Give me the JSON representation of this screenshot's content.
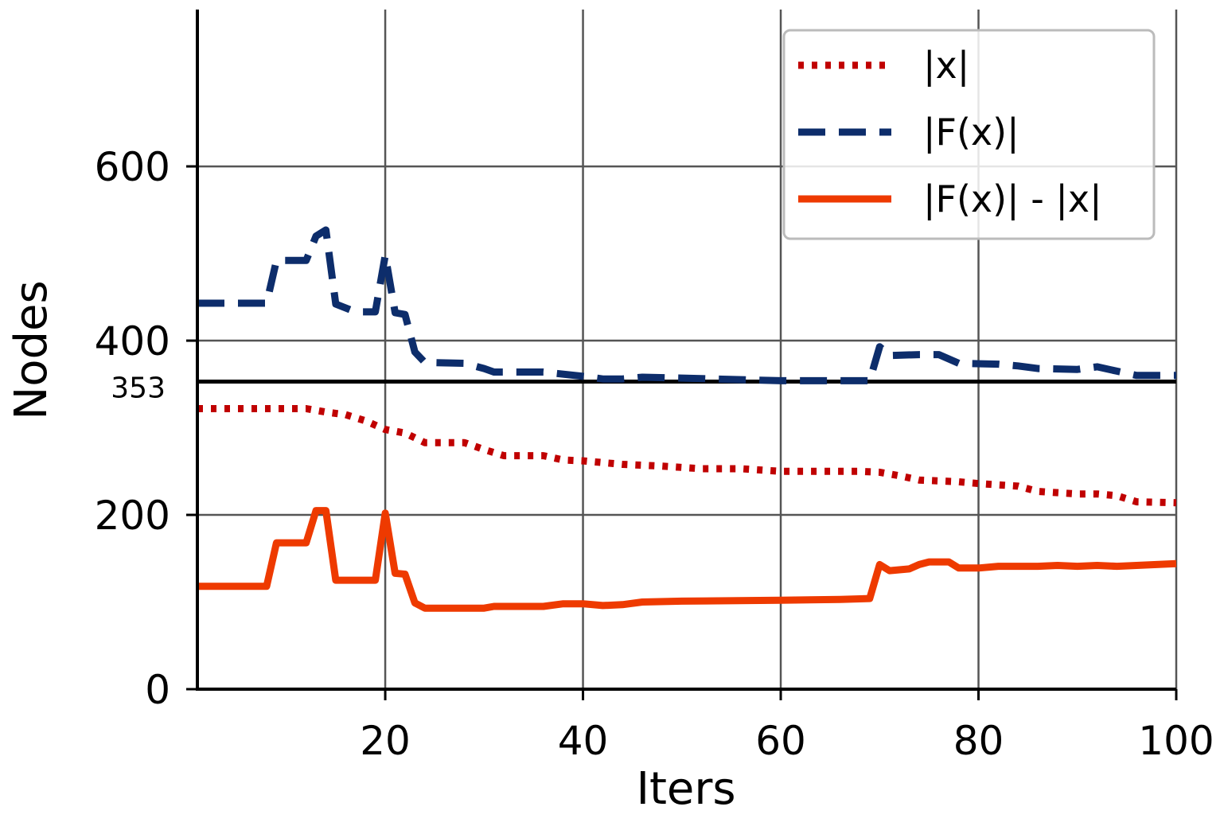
{
  "chart_data": {
    "type": "line",
    "xlabel": "Iters",
    "ylabel": "Nodes",
    "xlim": [
      1,
      100
    ],
    "ylim": [
      0,
      780
    ],
    "xticks": [
      20,
      40,
      60,
      80,
      100
    ],
    "yticks": [
      0,
      200,
      400,
      600
    ],
    "reference_line": {
      "y": 353,
      "label": "353"
    },
    "grid": true,
    "legend_placement": "top-right",
    "series": [
      {
        "name": "|x|",
        "color": "#c00000",
        "style": "dotted",
        "x": [
          1,
          10,
          12,
          14,
          16,
          18,
          20,
          22,
          24,
          28,
          30,
          32,
          36,
          38,
          40,
          44,
          48,
          52,
          56,
          60,
          64,
          68,
          70,
          72,
          74,
          78,
          80,
          84,
          86,
          90,
          92,
          94,
          96,
          100
        ],
        "y": [
          322,
          322,
          322,
          318,
          315,
          308,
          298,
          294,
          283,
          283,
          275,
          268,
          268,
          263,
          262,
          258,
          256,
          253,
          253,
          250,
          250,
          250,
          249,
          245,
          240,
          238,
          236,
          233,
          227,
          224,
          224,
          222,
          215,
          214
        ]
      },
      {
        "name": "|F(x)|",
        "color": "#0d2d6b",
        "style": "dashed",
        "x": [
          1,
          8,
          9,
          12,
          13,
          14,
          15,
          17,
          19,
          20,
          21,
          22,
          23,
          24,
          28,
          30,
          31,
          36,
          40,
          42,
          44,
          46,
          50,
          60,
          66,
          69,
          70,
          71,
          74,
          76,
          78,
          82,
          84,
          86,
          90,
          92,
          94,
          96,
          100
        ],
        "y": [
          443,
          443,
          492,
          492,
          520,
          527,
          442,
          433,
          433,
          498,
          432,
          430,
          387,
          375,
          374,
          368,
          364,
          364,
          359,
          356,
          356,
          358,
          357,
          354,
          354,
          354,
          393,
          383,
          384,
          384,
          374,
          373,
          371,
          368,
          367,
          370,
          365,
          360,
          360
        ]
      },
      {
        "name": "|F(x)| - |x|",
        "color": "#ee3a00",
        "style": "solid",
        "x": [
          1,
          8,
          9,
          12,
          13,
          14,
          15,
          17,
          19,
          20,
          21,
          22,
          23,
          24,
          28,
          30,
          31,
          36,
          38,
          40,
          42,
          44,
          46,
          50,
          60,
          66,
          69,
          70,
          71,
          73,
          74,
          75,
          77,
          78,
          80,
          82,
          86,
          88,
          90,
          92,
          94,
          96,
          100
        ],
        "y": [
          118,
          118,
          168,
          168,
          205,
          205,
          125,
          125,
          125,
          202,
          133,
          132,
          99,
          93,
          93,
          93,
          95,
          95,
          98,
          98,
          96,
          97,
          100,
          101,
          102,
          103,
          104,
          143,
          136,
          138,
          143,
          146,
          146,
          139,
          139,
          141,
          141,
          142,
          141,
          142,
          141,
          142,
          144
        ]
      }
    ]
  }
}
